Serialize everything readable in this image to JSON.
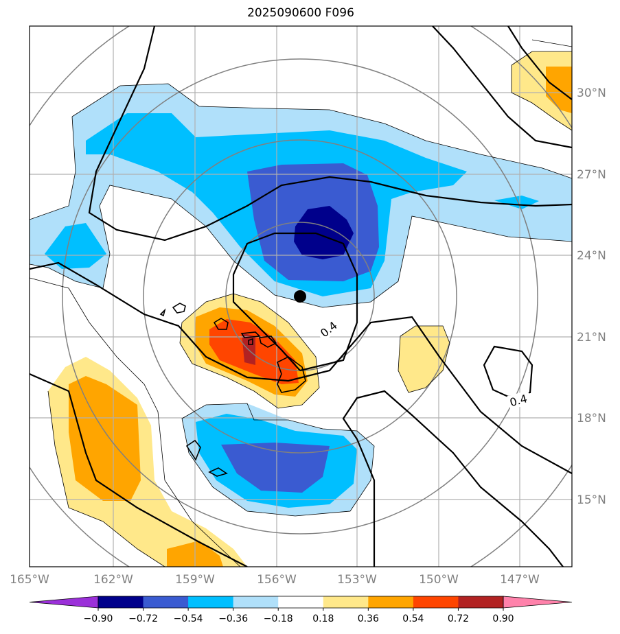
{
  "title": "2025090600 F096",
  "map": {
    "lat_labels": [
      "30°N",
      "27°N",
      "24°N",
      "21°N",
      "18°N",
      "15°N"
    ],
    "lon_labels": [
      "165°W",
      "162°W",
      "159°W",
      "156°W",
      "153°W",
      "150°W",
      "147°W"
    ],
    "contour_labels": [
      "0.4",
      "0.4"
    ],
    "center_marker": "storm-center-dot"
  },
  "colorbar": {
    "ticks": [
      "−0.90",
      "−0.72",
      "−0.54",
      "−0.36",
      "−0.18",
      "0.18",
      "0.36",
      "0.54",
      "0.72",
      "0.90"
    ],
    "colors": [
      "#9b30d9",
      "#00008b",
      "#3a5bd1",
      "#00bfff",
      "#b0e0fa",
      "#ffffff",
      "#ffe88a",
      "#ffa500",
      "#ff4500",
      "#b22222",
      "#ff82ab"
    ]
  }
}
